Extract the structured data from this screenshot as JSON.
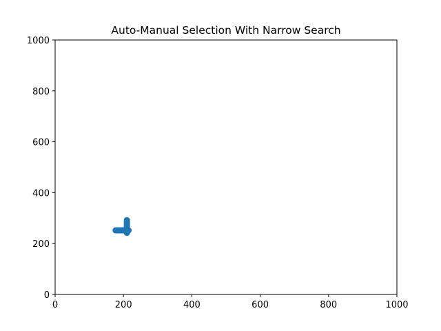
{
  "chart_data": {
    "type": "scatter",
    "title": "Auto-Manual Selection With Narrow Search",
    "xlabel": "",
    "ylabel": "",
    "xlim": [
      0,
      1000
    ],
    "ylim": [
      0,
      1000
    ],
    "xticks": [
      "0",
      "200",
      "400",
      "600",
      "800",
      "1000"
    ],
    "yticks": [
      "0",
      "200",
      "400",
      "600",
      "800",
      "1000"
    ],
    "grid": false,
    "marker_color": "#1f77b4",
    "series": [
      {
        "points": [
          {
            "x": 177,
            "y": 252
          },
          {
            "x": 180,
            "y": 252
          },
          {
            "x": 183,
            "y": 252
          },
          {
            "x": 186,
            "y": 252
          },
          {
            "x": 189,
            "y": 252
          },
          {
            "x": 192,
            "y": 252
          },
          {
            "x": 195,
            "y": 252
          },
          {
            "x": 198,
            "y": 252
          },
          {
            "x": 201,
            "y": 252
          },
          {
            "x": 204,
            "y": 252
          },
          {
            "x": 207,
            "y": 252
          },
          {
            "x": 210,
            "y": 252
          },
          {
            "x": 213,
            "y": 252
          },
          {
            "x": 215,
            "y": 252
          },
          {
            "x": 210,
            "y": 242
          },
          {
            "x": 210,
            "y": 246
          },
          {
            "x": 210,
            "y": 249
          },
          {
            "x": 210,
            "y": 256
          },
          {
            "x": 210,
            "y": 260
          },
          {
            "x": 210,
            "y": 264
          },
          {
            "x": 210,
            "y": 268
          },
          {
            "x": 210,
            "y": 272
          },
          {
            "x": 210,
            "y": 276
          },
          {
            "x": 210,
            "y": 280
          },
          {
            "x": 210,
            "y": 284
          },
          {
            "x": 210,
            "y": 288
          },
          {
            "x": 210,
            "y": 292
          }
        ]
      }
    ]
  }
}
